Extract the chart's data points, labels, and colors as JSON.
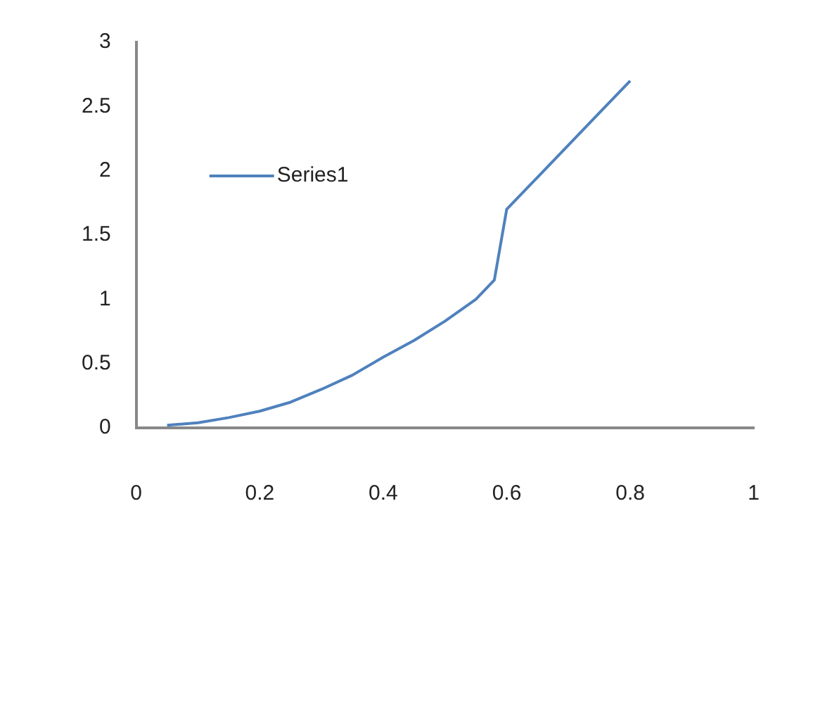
{
  "chart_data": {
    "type": "line",
    "legend": "top left",
    "grid": false,
    "marker": "none",
    "xlim": [
      0,
      1
    ],
    "xticks": [
      0,
      0.2,
      0.4,
      0.6,
      0.8,
      1
    ],
    "ylim": [
      0,
      3
    ],
    "yticks": [
      0,
      0.5,
      1,
      1.5,
      2,
      2.5,
      3
    ],
    "series": [
      {
        "name": "Series1",
        "color": "#4f81bd",
        "x": [
          0.05,
          0.1,
          0.15,
          0.2,
          0.25,
          0.3,
          0.35,
          0.4,
          0.45,
          0.5,
          0.55,
          0.58,
          0.6,
          0.65,
          0.7,
          0.75,
          0.8
        ],
        "values": [
          0.02,
          0.04,
          0.08,
          0.13,
          0.2,
          0.3,
          0.41,
          0.55,
          0.68,
          0.83,
          1.0,
          1.15,
          1.7,
          1.95,
          2.2,
          2.45,
          2.7
        ]
      }
    ]
  }
}
